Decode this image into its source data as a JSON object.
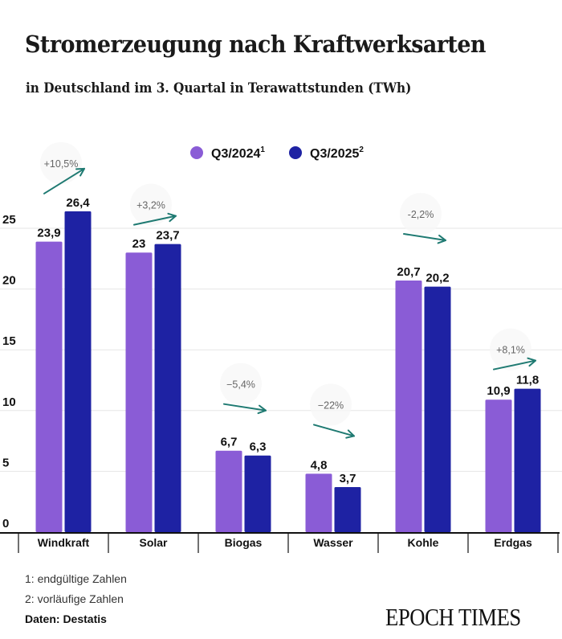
{
  "chart_data": {
    "type": "bar",
    "title": "Stromerzeugung nach Kraftwerksarten",
    "subtitle": "in Deutschland im 3. Quartal in Terawattstunden (TWh)",
    "xlabel": "",
    "ylabel": "",
    "ylim": [
      0,
      27
    ],
    "yticks": [
      0,
      5,
      10,
      15,
      20,
      25
    ],
    "grid": true,
    "legend_position": "top-center",
    "categories": [
      "Windkraft",
      "Solar",
      "Biogas",
      "Wasser",
      "Kohle",
      "Erdgas"
    ],
    "series": [
      {
        "name": "Q3/2024",
        "superscript": "1",
        "color": "#8a5cd6",
        "values": [
          23.9,
          23,
          6.7,
          4.8,
          20.7,
          10.9
        ],
        "labels": [
          "23,9",
          "23",
          "6,7",
          "4,8",
          "20,7",
          "10,9"
        ]
      },
      {
        "name": "Q3/2025",
        "superscript": "2",
        "color": "#1e22a3",
        "values": [
          26.4,
          23.7,
          6.3,
          3.7,
          20.2,
          11.8
        ],
        "labels": [
          "26,4",
          "23,7",
          "6,3",
          "3,7",
          "20,2",
          "11,8"
        ]
      }
    ],
    "annotations": [
      {
        "category": "Windkraft",
        "text": "+10,5%",
        "direction": "up-steep"
      },
      {
        "category": "Solar",
        "text": "+3,2%",
        "direction": "up"
      },
      {
        "category": "Biogas",
        "text": "−5,4%",
        "direction": "down"
      },
      {
        "category": "Wasser",
        "text": "−22%",
        "direction": "down-steep"
      },
      {
        "category": "Kohle",
        "text": "-2,2%",
        "direction": "down"
      },
      {
        "category": "Erdgas",
        "text": "+8,1%",
        "direction": "up"
      }
    ],
    "arrow_color": "#1f7a72"
  },
  "footnotes": {
    "note1": "1: endgültige Zahlen",
    "note2": "2: vorläufige Zahlen",
    "source": "Daten: Destatis"
  },
  "brand": "EPOCH TIMES"
}
